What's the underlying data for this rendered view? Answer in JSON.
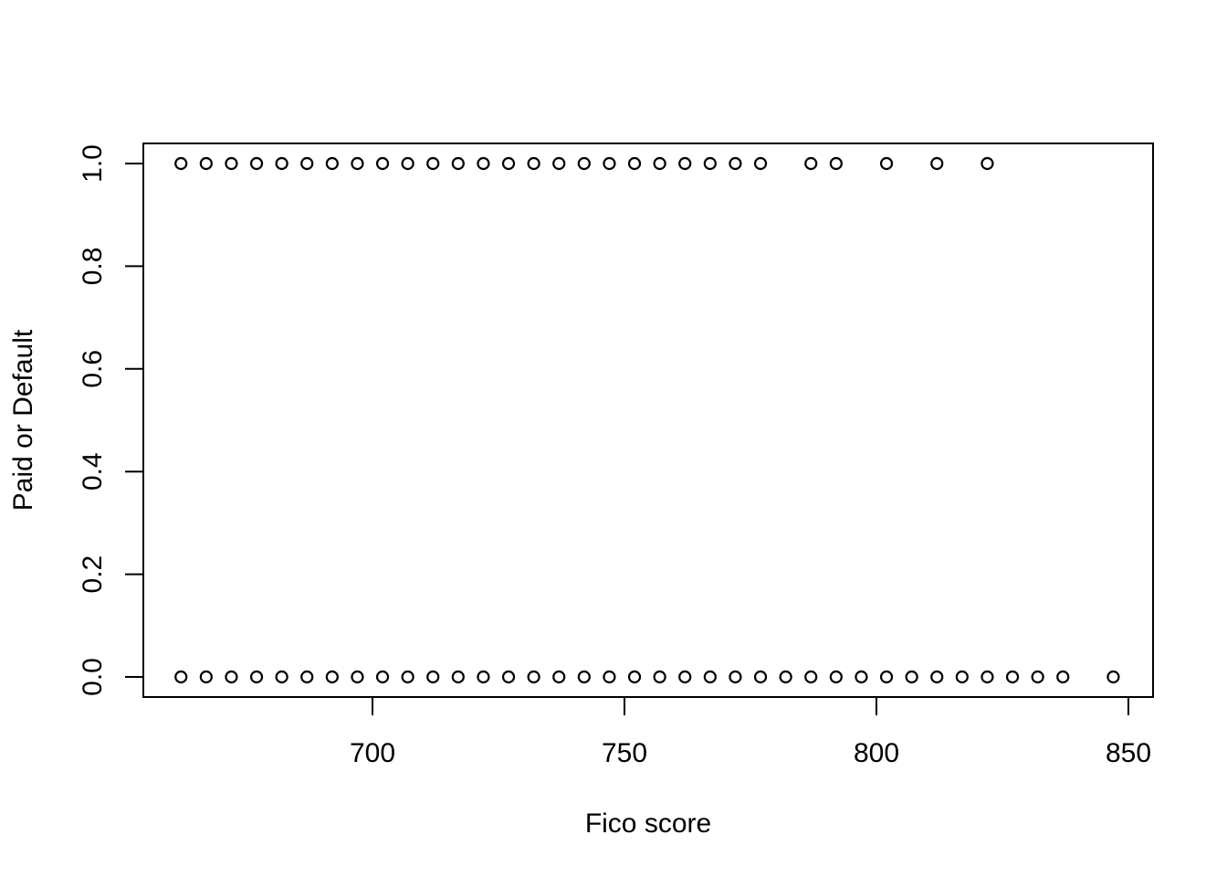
{
  "chart_data": {
    "type": "scatter",
    "title": "",
    "xlabel": "Fico score",
    "ylabel": "Paid or Default",
    "xlim": [
      660,
      850
    ],
    "ylim": [
      0,
      1
    ],
    "x_ticks": [
      700,
      750,
      800,
      850
    ],
    "x_tick_labels": [
      "700",
      "750",
      "800",
      "850"
    ],
    "y_ticks": [
      0,
      0.2,
      0.4,
      0.6,
      0.8,
      1
    ],
    "y_tick_labels": [
      "0.0",
      "0.2",
      "0.4",
      "0.6",
      "0.8",
      "1.0"
    ],
    "grid": false,
    "marker": "open-circle",
    "marker_color": "#000000",
    "series": [
      {
        "y": 1,
        "x": [
          662,
          667,
          672,
          677,
          682,
          687,
          692,
          697,
          702,
          707,
          712,
          717,
          722,
          727,
          732,
          737,
          742,
          747,
          752,
          757,
          762,
          767,
          772,
          777,
          787,
          792,
          802,
          812,
          822
        ]
      },
      {
        "y": 0,
        "x": [
          662,
          667,
          672,
          677,
          682,
          687,
          692,
          697,
          702,
          707,
          712,
          717,
          722,
          727,
          732,
          737,
          742,
          747,
          752,
          757,
          762,
          767,
          772,
          777,
          782,
          787,
          792,
          797,
          802,
          807,
          812,
          817,
          822,
          827,
          832,
          837,
          847
        ]
      }
    ]
  }
}
